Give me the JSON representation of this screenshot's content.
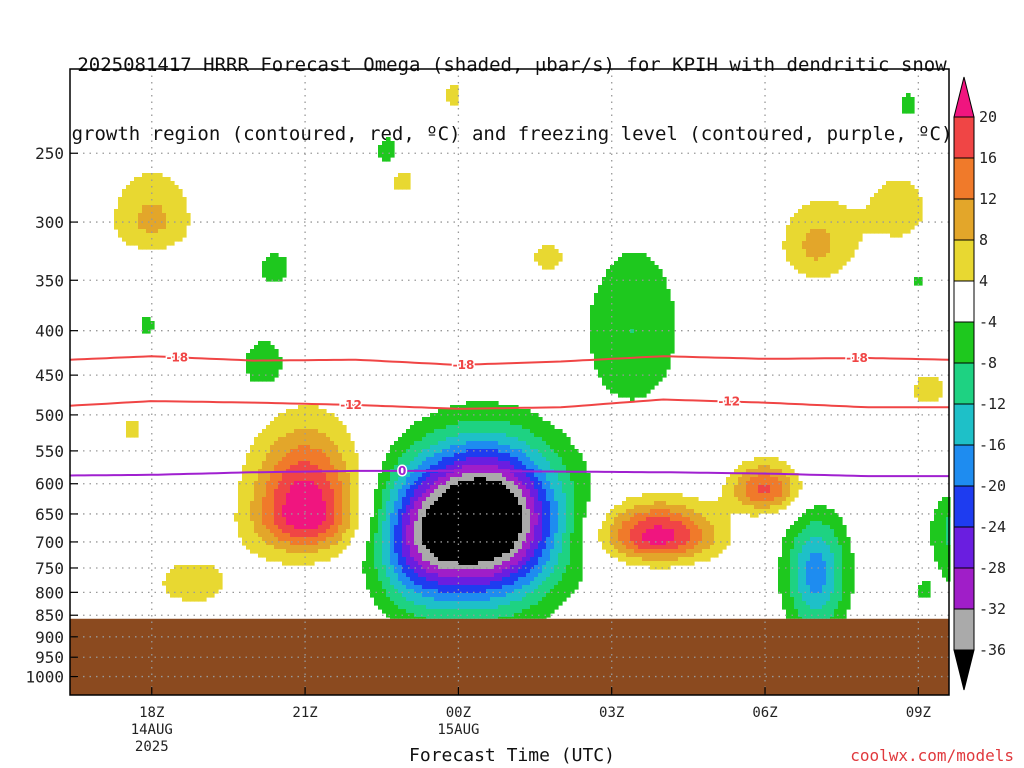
{
  "title_line1": "2025081417 HRRR Forecast Omega (shaded, μbar/s) for KPIH with dendritic snow",
  "title_line2": "growth region (contoured, red, ºC) and freezing level (contoured, purple, ºC)",
  "xlabel": "Forecast Time (UTC)",
  "credit": "coolwx.com/models",
  "colors": {
    "terrain": "#8b4a1f",
    "snow_contour": "#f04545",
    "freezing_contour": "#a020d0",
    "grid": "#999999"
  },
  "chart_data": {
    "type": "heatmap",
    "title": "2025081417 HRRR Forecast Omega (shaded, μbar/s) for KPIH with dendritic snow growth region (contoured, red, ºC) and freezing level (contoured, purple, ºC)",
    "xlabel": "Forecast Time (UTC)",
    "ylabel": "",
    "y_scale": "log",
    "y_inverted": true,
    "ylim": [
      1050,
      200
    ],
    "xlim_hours": [
      -0.6,
      16.6
    ],
    "y_ticks": [
      250,
      300,
      350,
      400,
      450,
      500,
      550,
      600,
      650,
      700,
      750,
      800,
      850,
      900,
      950,
      1000
    ],
    "x_ticks": [
      {
        "hour": 1,
        "label": "18Z",
        "sub1": "14AUG",
        "sub2": "2025"
      },
      {
        "hour": 4,
        "label": "21Z",
        "sub1": "",
        "sub2": ""
      },
      {
        "hour": 7,
        "label": "00Z",
        "sub1": "15AUG",
        "sub2": ""
      },
      {
        "hour": 10,
        "label": "03Z",
        "sub1": "",
        "sub2": ""
      },
      {
        "hour": 13,
        "label": "06Z",
        "sub1": "",
        "sub2": ""
      },
      {
        "hour": 16,
        "label": "09Z",
        "sub1": "",
        "sub2": ""
      }
    ],
    "grid": true,
    "surface_pressure_hpa": 858,
    "colorbar": {
      "ticks": [
        20,
        16,
        12,
        8,
        4,
        -4,
        -8,
        -12,
        -16,
        -20,
        -24,
        -28,
        -32,
        -36
      ],
      "bins": [
        {
          "from": 20,
          "to": 24,
          "color": "#f0157f"
        },
        {
          "from": 16,
          "to": 20,
          "color": "#f04545"
        },
        {
          "from": 12,
          "to": 16,
          "color": "#f07a2a"
        },
        {
          "from": 8,
          "to": 12,
          "color": "#e3a62a"
        },
        {
          "from": 4,
          "to": 8,
          "color": "#e8d831"
        },
        {
          "from": -4,
          "to": 4,
          "color": "#ffffff"
        },
        {
          "from": -8,
          "to": -4,
          "color": "#1ec81e"
        },
        {
          "from": -12,
          "to": -8,
          "color": "#1ed282"
        },
        {
          "from": -16,
          "to": -12,
          "color": "#1ec0c8"
        },
        {
          "from": -20,
          "to": -16,
          "color": "#1e8cf0"
        },
        {
          "from": -24,
          "to": -20,
          "color": "#1e3cf0"
        },
        {
          "from": -28,
          "to": -24,
          "color": "#6a1ee0"
        },
        {
          "from": -32,
          "to": -28,
          "color": "#a01ec8"
        },
        {
          "from": -36,
          "to": -32,
          "color": "#aaaaaa"
        },
        {
          "from": -40,
          "to": -36,
          "color": "#000000"
        }
      ]
    },
    "omega_features": [
      {
        "hour": 1.0,
        "p": 300,
        "wh": 0.8,
        "wl": 0.45,
        "hw": 0.8,
        "value": 9
      },
      {
        "hour": 5.9,
        "p": 270,
        "wh": 0.25,
        "wl": 0.2,
        "hw": 0.3,
        "value": 6
      },
      {
        "hour": 6.9,
        "p": 215,
        "wh": 0.35,
        "wl": 0.3,
        "hw": 0.25,
        "value": 5
      },
      {
        "hour": 8.8,
        "p": 330,
        "wh": 0.5,
        "wl": 0.4,
        "hw": 0.7,
        "value": 5
      },
      {
        "hour": 14.0,
        "p": 320,
        "wh": 0.7,
        "wl": 0.5,
        "hw": 0.7,
        "value": 9
      },
      {
        "hour": 15.6,
        "p": 290,
        "wh": 0.9,
        "wl": 0.8,
        "hw": 1.0,
        "value": 5
      },
      {
        "hour": 0.6,
        "p": 520,
        "wh": 0.3,
        "wl": 0.25,
        "hw": 0.3,
        "value": 5
      },
      {
        "hour": 16.2,
        "p": 470,
        "wh": 0.5,
        "wl": 0.3,
        "hw": 0.6,
        "value": 5
      },
      {
        "hour": 16.6,
        "p": 580,
        "wh": 0.5,
        "wl": 0.4,
        "hw": 0.6,
        "value": 5
      },
      {
        "hour": 4.0,
        "p": 650,
        "wh": 1.2,
        "wl": 0.55,
        "hw": 1.0,
        "value": 24
      },
      {
        "hour": 1.8,
        "p": 780,
        "wh": 0.6,
        "wl": 0.55,
        "hw": 1.2,
        "value": 5
      },
      {
        "hour": 10.9,
        "p": 690,
        "wh": 0.5,
        "wl": 0.35,
        "hw": 1.1,
        "value": 22
      },
      {
        "hour": 13.0,
        "p": 610,
        "wh": 0.4,
        "wl": 0.3,
        "hw": 0.65,
        "value": 17
      },
      {
        "hour": 16.2,
        "p": 830,
        "wh": 0.15,
        "wl": 0.1,
        "hw": 0.4,
        "value": 5
      },
      {
        "hour": 5.6,
        "p": 250,
        "wh": 0.35,
        "wl": 0.25,
        "hw": 0.25,
        "value": -6
      },
      {
        "hour": 15.8,
        "p": 220,
        "wh": 0.3,
        "wl": 0.25,
        "hw": 0.2,
        "value": -6
      },
      {
        "hour": 3.4,
        "p": 340,
        "wh": 0.3,
        "wl": 0.25,
        "hw": 0.35,
        "value": -7
      },
      {
        "hour": 3.2,
        "p": 440,
        "wh": 0.5,
        "wl": 0.4,
        "hw": 0.5,
        "value": -7
      },
      {
        "hour": 16.0,
        "p": 350,
        "wh": 0.2,
        "wl": 0.15,
        "hw": 0.15,
        "value": -6
      },
      {
        "hour": 0.9,
        "p": 395,
        "wh": 0.2,
        "wl": 0.15,
        "hw": 0.2,
        "value": -6
      },
      {
        "hour": 6.2,
        "p": 710,
        "wh": 1.0,
        "wl": 0.9,
        "hw": 0.85,
        "value": -15
      },
      {
        "hour": 7.5,
        "p": 660,
        "wh": 1.1,
        "wl": 1.1,
        "hw": 1.4,
        "value": -48
      },
      {
        "hour": 10.4,
        "p": 400,
        "wh": 1.4,
        "wl": 1.2,
        "hw": 1.0,
        "value": -8
      },
      {
        "hour": 14.0,
        "p": 760,
        "wh": 0.85,
        "wl": 0.85,
        "hw": 0.6,
        "value": -18
      },
      {
        "hour": 16.9,
        "p": 680,
        "wh": 0.9,
        "wl": 0.8,
        "hw": 0.65,
        "value": -11
      },
      {
        "hour": 16.1,
        "p": 815,
        "wh": 0.3,
        "wl": 0.25,
        "hw": 0.25,
        "value": -6
      }
    ],
    "series": [
      {
        "name": "-18",
        "type": "contour",
        "hours": [
          -0.6,
          1.0,
          3.0,
          5.0,
          7.0,
          9.0,
          11.0,
          13.0,
          15.0,
          16.6
        ],
        "pressure": [
          432,
          428,
          433,
          432,
          438,
          434,
          428,
          431,
          430,
          432
        ]
      },
      {
        "name": "-12",
        "type": "contour",
        "hours": [
          -0.6,
          1.0,
          3.0,
          5.0,
          7.0,
          9.0,
          11.0,
          13.0,
          15.0,
          16.6
        ],
        "pressure": [
          488,
          482,
          484,
          487,
          492,
          490,
          480,
          484,
          490,
          490
        ]
      },
      {
        "name": "0",
        "type": "contour",
        "hours": [
          -0.6,
          1.0,
          3.0,
          5.0,
          7.0,
          9.0,
          11.0,
          13.0,
          15.0,
          16.6
        ],
        "pressure": [
          587,
          586,
          582,
          580,
          580,
          581,
          582,
          584,
          588,
          588
        ]
      }
    ],
    "contour_labels": [
      {
        "text": "-18",
        "series": "-18",
        "hour": 1.5
      },
      {
        "text": "-18",
        "series": "-18",
        "hour": 7.1
      },
      {
        "text": "-18",
        "series": "-18",
        "hour": 14.8
      },
      {
        "text": "-12",
        "series": "-12",
        "hour": 4.9
      },
      {
        "text": "-12",
        "series": "-12",
        "hour": 12.3
      },
      {
        "text": "0",
        "series": "0",
        "hour": 5.9
      }
    ]
  }
}
